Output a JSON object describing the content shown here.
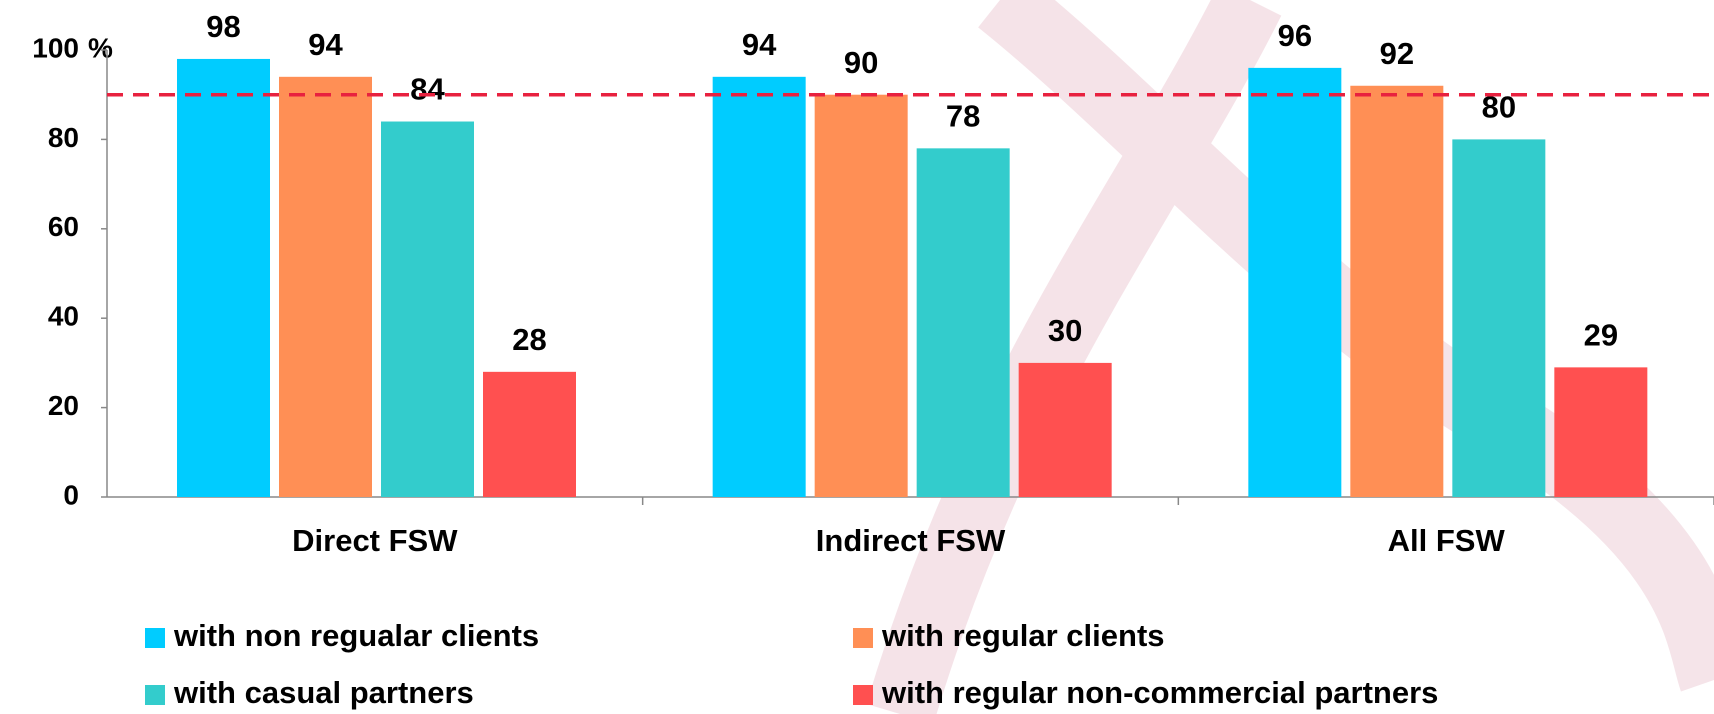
{
  "chart_data": {
    "type": "bar",
    "y_label": "%",
    "categories": [
      "Direct FSW",
      "Indirect FSW",
      "All FSW"
    ],
    "series": [
      {
        "name": "with non regualar clients",
        "color": "#00ccff",
        "values": [
          98,
          94,
          96
        ]
      },
      {
        "name": "with regular clients",
        "color": "#ff8f55",
        "values": [
          94,
          90,
          92
        ]
      },
      {
        "name": "with casual partners",
        "color": "#33cccc",
        "values": [
          84,
          78,
          80
        ]
      },
      {
        "name": "with regular non-commercial partners",
        "color": "#ff5050",
        "values": [
          28,
          30,
          29
        ]
      }
    ],
    "ylim": [
      0,
      100
    ],
    "yticks": [
      0,
      20,
      40,
      60,
      80,
      100
    ],
    "reference_line": {
      "value": 90,
      "color": "#e8213f"
    },
    "legend": "bottom"
  }
}
